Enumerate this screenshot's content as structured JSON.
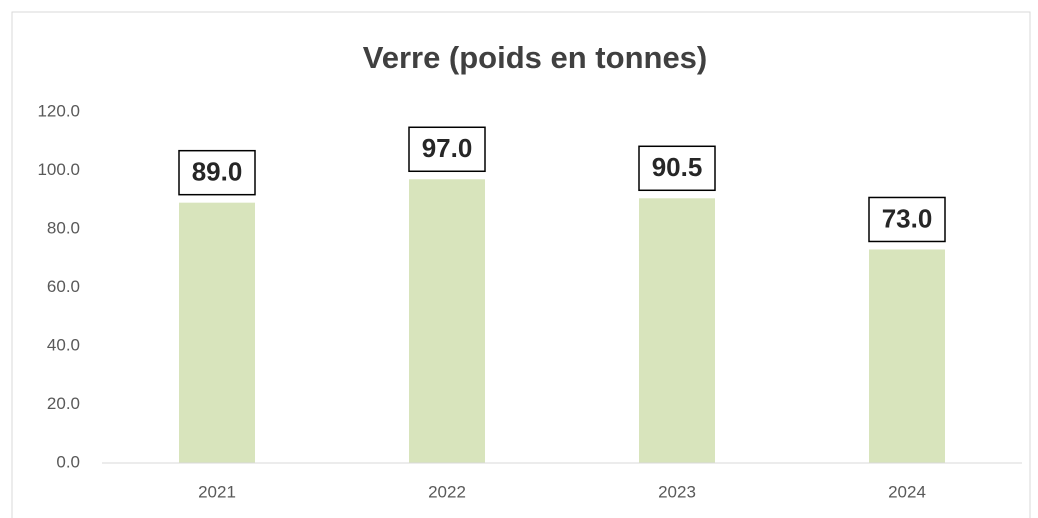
{
  "chart_data": {
    "type": "bar",
    "title": "Verre (poids en tonnes)",
    "categories": [
      "2021",
      "2022",
      "2023",
      "2024"
    ],
    "values": [
      89.0,
      97.0,
      90.5,
      73.0
    ],
    "value_labels": [
      "89.0",
      "97.0",
      "90.5",
      "73.0"
    ],
    "color": "#d8e4bc",
    "ylim": [
      0,
      120
    ],
    "yticks": [
      {
        "value": 0,
        "label": "0.0"
      },
      {
        "value": 20,
        "label": "20.0"
      },
      {
        "value": 40,
        "label": "40.0"
      },
      {
        "value": 60,
        "label": "60.0"
      },
      {
        "value": 80,
        "label": "80.0"
      },
      {
        "value": 100,
        "label": "100.0"
      },
      {
        "value": 120,
        "label": "120.0"
      }
    ],
    "grid": false
  }
}
